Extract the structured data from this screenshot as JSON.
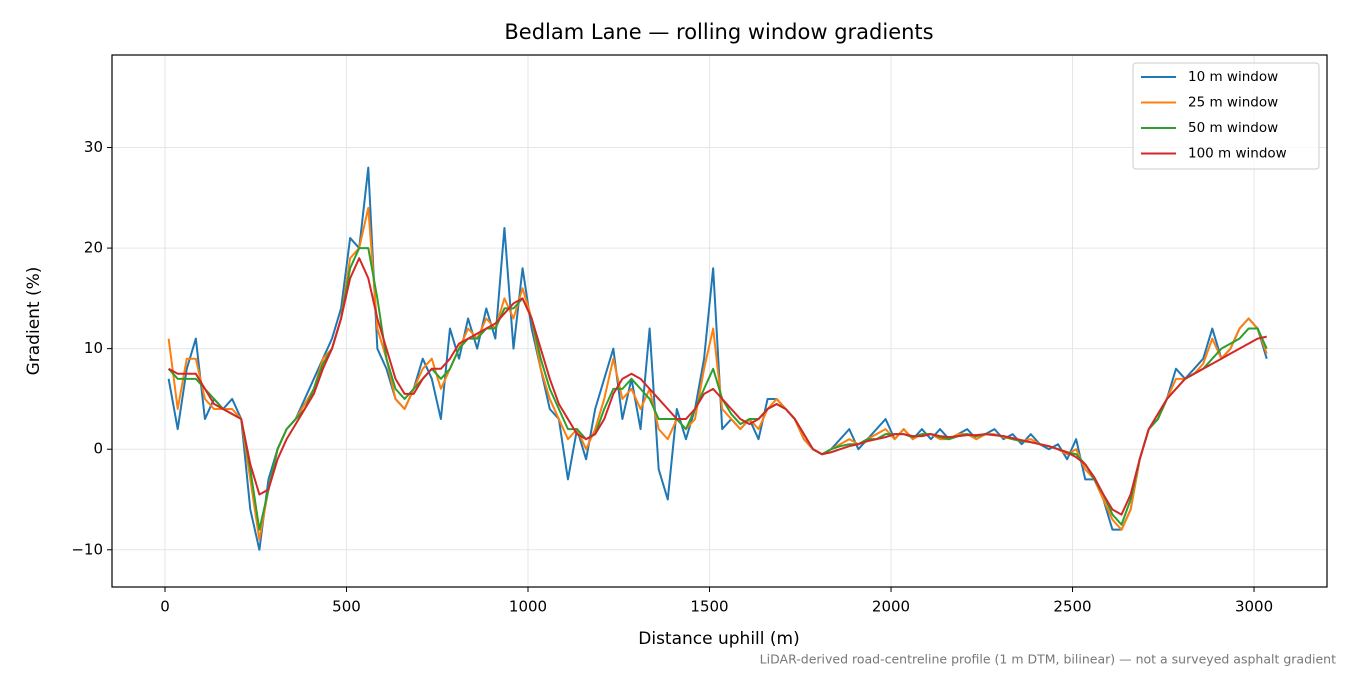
{
  "chart_data": {
    "type": "line",
    "title": "Bedlam Lane — rolling window gradients",
    "xlabel": "Distance uphill (m)",
    "ylabel": "Gradient (%)",
    "footnote": "LiDAR-derived road-centreline profile (1 m DTM, bilinear) — not a surveyed asphalt gradient",
    "x": [
      10,
      35,
      60,
      85,
      110,
      135,
      160,
      185,
      210,
      235,
      260,
      285,
      310,
      335,
      360,
      385,
      410,
      435,
      460,
      485,
      510,
      535,
      560,
      585,
      610,
      635,
      660,
      685,
      710,
      735,
      760,
      785,
      810,
      835,
      860,
      885,
      910,
      935,
      960,
      985,
      1010,
      1035,
      1060,
      1085,
      1110,
      1135,
      1160,
      1185,
      1210,
      1235,
      1260,
      1285,
      1310,
      1335,
      1360,
      1385,
      1410,
      1435,
      1460,
      1485,
      1510,
      1535,
      1560,
      1585,
      1610,
      1635,
      1660,
      1685,
      1710,
      1735,
      1760,
      1785,
      1810,
      1835,
      1860,
      1885,
      1910,
      1935,
      1960,
      1985,
      2010,
      2035,
      2060,
      2085,
      2110,
      2135,
      2160,
      2185,
      2210,
      2235,
      2260,
      2285,
      2310,
      2335,
      2360,
      2385,
      2410,
      2435,
      2460,
      2485,
      2510,
      2535,
      2560,
      2585,
      2610,
      2635,
      2660,
      2685,
      2710,
      2735,
      2760,
      2785,
      2810,
      2835,
      2860,
      2885,
      2910,
      2935,
      2960,
      2985,
      3010,
      3035
    ],
    "series": [
      {
        "name": "10 m window",
        "color": "#1f77b4",
        "values": [
          7,
          2,
          8,
          11,
          3,
          5,
          4,
          5,
          3,
          -6,
          -10,
          -3,
          0,
          2,
          3,
          5,
          7,
          9,
          11,
          14,
          21,
          20,
          28,
          10,
          8,
          5,
          4,
          6,
          9,
          7,
          3,
          12,
          9,
          13,
          10,
          14,
          11,
          22,
          10,
          18,
          12,
          8,
          4,
          3,
          -3,
          2,
          -1,
          4,
          7,
          10,
          3,
          7,
          2,
          12,
          -2,
          -5,
          4,
          1,
          4,
          9,
          18,
          2,
          3,
          2,
          3,
          1,
          5,
          5,
          4,
          3,
          1,
          0,
          -0.5,
          0,
          1,
          2,
          0,
          1,
          2,
          3,
          1,
          2,
          1,
          2,
          1,
          2,
          1,
          1.5,
          2,
          1,
          1.5,
          2,
          1,
          1.5,
          0.5,
          1.5,
          0.5,
          0,
          0.5,
          -1,
          1,
          -3,
          -3,
          -5,
          -8,
          -8,
          -6,
          -1,
          2,
          3,
          5,
          8,
          7,
          8,
          9,
          12,
          9,
          10,
          12,
          13,
          12,
          9
        ]
      },
      {
        "name": "25 m window",
        "color": "#ff7f0e",
        "values": [
          11,
          4,
          9,
          9,
          5,
          4,
          4,
          4,
          3,
          -3,
          -9,
          -4,
          0,
          2,
          3,
          4.5,
          6,
          9,
          10,
          13,
          19,
          20,
          24,
          12,
          9,
          5,
          4,
          6,
          8,
          9,
          6,
          8,
          10,
          12,
          11,
          13,
          12,
          15,
          13,
          16,
          13,
          8,
          5,
          3,
          1,
          2,
          0,
          2,
          5,
          9,
          5,
          6,
          4,
          6,
          2,
          1,
          3,
          2,
          3,
          8,
          12,
          4,
          3,
          2,
          3,
          2,
          4,
          5,
          4,
          3,
          1,
          0,
          -0.5,
          0,
          0.5,
          1,
          0.5,
          1,
          1.5,
          2,
          1,
          2,
          1,
          1.5,
          1.5,
          1,
          1,
          1.5,
          1.5,
          1,
          1.5,
          1.5,
          1.2,
          1,
          0.8,
          1,
          0.5,
          0.3,
          0,
          -0.5,
          0,
          -2,
          -3,
          -5,
          -7,
          -8,
          -6,
          -1,
          2,
          3,
          5,
          7,
          7,
          7.5,
          8.5,
          11,
          9,
          10,
          12,
          13,
          12,
          9.5
        ]
      },
      {
        "name": "50 m window",
        "color": "#2ca02c",
        "values": [
          8,
          7,
          7,
          7,
          6,
          5,
          4,
          3.5,
          3,
          -2,
          -8,
          -4,
          0,
          2,
          3,
          4,
          6,
          8.5,
          10,
          13,
          18,
          20,
          20,
          15,
          9,
          6,
          5,
          6,
          7,
          8,
          7,
          8,
          10,
          11,
          11,
          12,
          12,
          14,
          14,
          15,
          13,
          9,
          6,
          4,
          2,
          2,
          1,
          1.5,
          4,
          6,
          6,
          7,
          6,
          5,
          3,
          3,
          3,
          2,
          4,
          6,
          8,
          5,
          3.5,
          2.5,
          3,
          3,
          4,
          4.5,
          4,
          3,
          1.5,
          0,
          -0.5,
          0,
          0.3,
          0.5,
          0.5,
          1,
          1,
          1.5,
          1.5,
          1.5,
          1.2,
          1.5,
          1.5,
          1.2,
          1,
          1.3,
          1.5,
          1.3,
          1.5,
          1.4,
          1.3,
          1,
          0.8,
          0.7,
          0.5,
          0.3,
          0,
          -0.3,
          -0.5,
          -1.5,
          -3,
          -4.5,
          -6.5,
          -7.5,
          -5,
          -1,
          2,
          3,
          5,
          6,
          7,
          7.5,
          8,
          9,
          10,
          10.5,
          11,
          12,
          12,
          10
        ]
      },
      {
        "name": "100 m window",
        "color": "#d62728",
        "values": [
          8,
          7.5,
          7.5,
          7.5,
          6,
          4.5,
          4,
          3.5,
          3,
          -1.5,
          -4.5,
          -4,
          -1,
          1,
          2.5,
          4,
          5.5,
          8,
          10,
          13,
          17,
          19,
          17,
          13,
          10,
          7,
          5.5,
          5.5,
          7,
          8,
          8,
          9,
          10.5,
          11,
          11.5,
          12,
          12.5,
          13.5,
          14.5,
          15,
          13,
          10,
          7,
          4.5,
          3,
          1.5,
          1,
          1.5,
          3,
          5.5,
          7,
          7.5,
          7,
          6,
          5,
          4,
          3,
          3,
          4,
          5.5,
          6,
          5,
          4,
          3,
          2.5,
          3,
          4,
          4.5,
          4,
          3,
          1.5,
          0,
          -0.5,
          -0.3,
          0,
          0.3,
          0.5,
          0.8,
          1,
          1.2,
          1.5,
          1.5,
          1.3,
          1.3,
          1.5,
          1.3,
          1.2,
          1.3,
          1.4,
          1.4,
          1.5,
          1.4,
          1.3,
          1.1,
          0.9,
          0.7,
          0.5,
          0.3,
          0,
          -0.3,
          -0.8,
          -1.5,
          -2.8,
          -4.5,
          -6,
          -6.5,
          -4.5,
          -1,
          2,
          3.5,
          5,
          6,
          7,
          7.5,
          8,
          8.5,
          9,
          9.5,
          10,
          10.5,
          11,
          11.2
        ]
      }
    ],
    "xlim": [
      -146,
      3201
    ],
    "ylim": [
      -13.7,
      39.2
    ],
    "xticks": [
      0,
      500,
      1000,
      1500,
      2000,
      2500,
      3000
    ],
    "yticks": [
      {
        "value": -10,
        "label": "−10"
      },
      0,
      10,
      20,
      30
    ],
    "grid": true,
    "legend": "upper right"
  }
}
